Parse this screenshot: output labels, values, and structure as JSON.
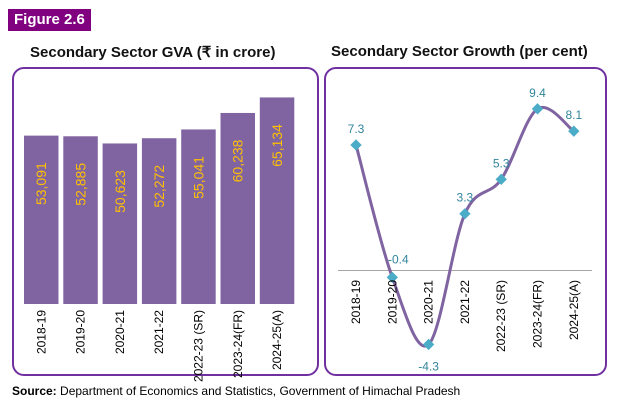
{
  "figure_label": "Figure 2.6",
  "source": {
    "prefix": "Source:",
    "text": "Department of Economics and Statistics, Government of Himachal Pradesh"
  },
  "colors": {
    "accent": "#800080",
    "panel_border": "#7030a0",
    "bar_fill": "#8064a2",
    "bar_label": "#ffc000",
    "line": "#8064a2",
    "marker": "#4aacc6",
    "point_label": "#31859c"
  },
  "chart_data": [
    {
      "type": "bar",
      "title": "Secondary Sector GVA (₹ in crore)",
      "xlabel": "",
      "ylabel": "",
      "categories": [
        "2018-19",
        "2019-20",
        "2020-21",
        "2021-22",
        "2022-23 (SR)",
        "2023-24(FR)",
        "2024-25(A)"
      ],
      "values": [
        53091,
        52885,
        50623,
        52272,
        55041,
        60238,
        65134
      ],
      "value_labels": [
        "53,091",
        "52,885",
        "50,623",
        "52,272",
        "55,041",
        "60,238",
        "65,134"
      ],
      "ylim": [
        0,
        70000
      ],
      "grid": false,
      "legend": "none"
    },
    {
      "type": "line",
      "title": "Secondary Sector Growth (per cent)",
      "xlabel": "",
      "ylabel": "",
      "categories": [
        "2018-19",
        "2019-20",
        "2020-21",
        "2021-22",
        "2022-23 (SR)",
        "2023-24(FR)",
        "2024-25(A)"
      ],
      "values": [
        7.3,
        -0.4,
        -4.3,
        3.3,
        5.3,
        9.4,
        8.1
      ],
      "value_labels": [
        "7.3",
        "-0.4",
        "-4.3",
        "3.3",
        "5.3",
        "9.4",
        "8.1"
      ],
      "ylim": [
        -5,
        11
      ],
      "smooth": true,
      "grid": false,
      "legend": "none"
    }
  ]
}
